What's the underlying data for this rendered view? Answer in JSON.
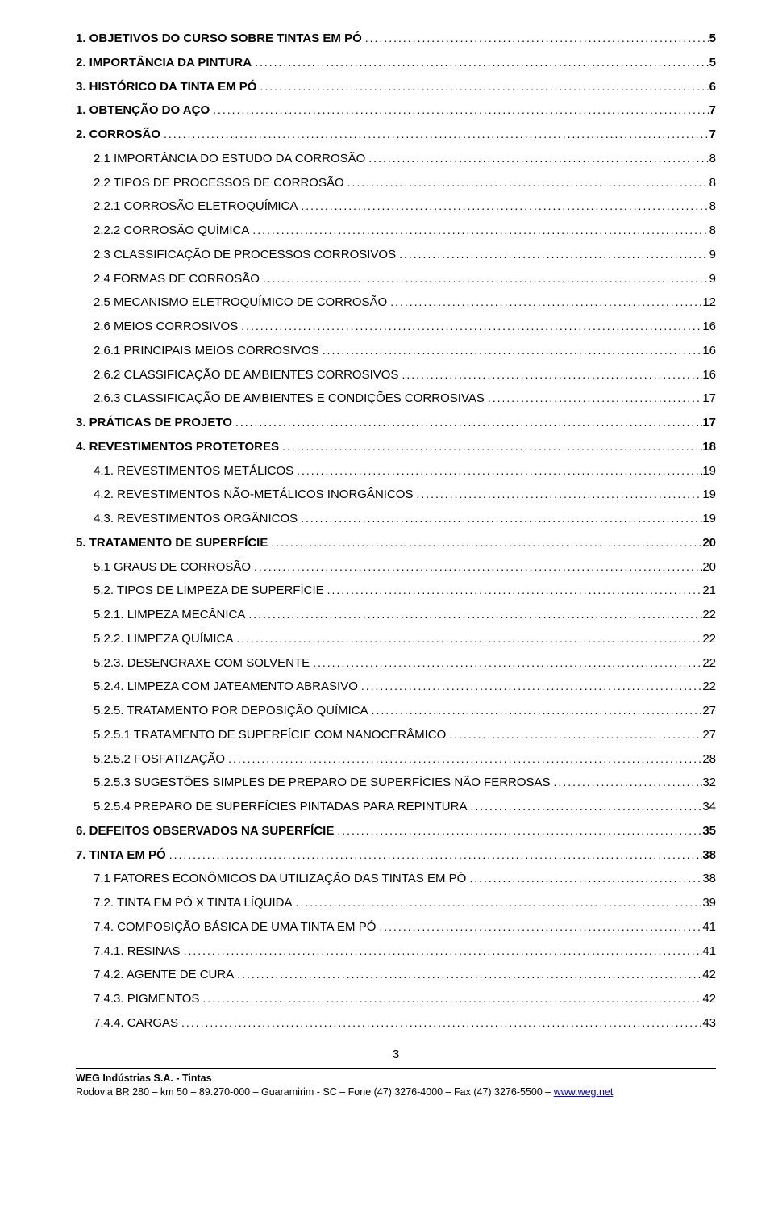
{
  "toc": [
    {
      "label": "1.    OBJETIVOS DO CURSO SOBRE TINTAS EM PÓ",
      "page": "5",
      "bold": true,
      "indent": 0
    },
    {
      "label": "2. IMPORTÂNCIA DA PINTURA",
      "page": "5",
      "bold": true,
      "indent": 0
    },
    {
      "label": "3.  HISTÓRICO DA TINTA EM PÓ",
      "page": "6",
      "bold": true,
      "indent": 0
    },
    {
      "label": "1. OBTENÇÃO DO AÇO",
      "page": "7",
      "bold": true,
      "indent": 0
    },
    {
      "label": "2. CORROSÃO",
      "page": "7",
      "bold": true,
      "indent": 0
    },
    {
      "label": "2.1 IMPORTÂNCIA DO ESTUDO DA CORROSÃO",
      "page": "8",
      "bold": false,
      "indent": 1
    },
    {
      "label": "2.2 TIPOS DE PROCESSOS DE CORROSÃO",
      "page": "8",
      "bold": false,
      "indent": 1
    },
    {
      "label": "2.2.1 CORROSÃO ELETROQUÍMICA",
      "page": "8",
      "bold": false,
      "indent": 1
    },
    {
      "label": "2.2.2 CORROSÃO QUÍMICA",
      "page": "8",
      "bold": false,
      "indent": 1
    },
    {
      "label": "2.3 CLASSIFICAÇÃO DE PROCESSOS CORROSIVOS",
      "page": "9",
      "bold": false,
      "indent": 1
    },
    {
      "label": "2.4 FORMAS DE CORROSÃO",
      "page": "9",
      "bold": false,
      "indent": 1
    },
    {
      "label": "2.5 MECANISMO ELETROQUÍMICO DE CORROSÃO",
      "page": "12",
      "bold": false,
      "indent": 1
    },
    {
      "label": "2.6 MEIOS CORROSIVOS",
      "page": "16",
      "bold": false,
      "indent": 1
    },
    {
      "label": "2.6.1 PRINCIPAIS MEIOS CORROSIVOS",
      "page": "16",
      "bold": false,
      "indent": 1
    },
    {
      "label": "2.6.2 CLASSIFICAÇÃO DE AMBIENTES CORROSIVOS",
      "page": "16",
      "bold": false,
      "indent": 1
    },
    {
      "label": "2.6.3 CLASSIFICAÇÃO DE AMBIENTES E CONDIÇÕES CORROSIVAS",
      "page": "17",
      "bold": false,
      "indent": 1
    },
    {
      "label": "3. PRÁTICAS DE PROJETO",
      "page": "17",
      "bold": true,
      "indent": 0
    },
    {
      "label": "4. REVESTIMENTOS PROTETORES",
      "page": "18",
      "bold": true,
      "indent": 0
    },
    {
      "label": "4.1. REVESTIMENTOS METÁLICOS",
      "page": "19",
      "bold": false,
      "indent": 1
    },
    {
      "label": "4.2. REVESTIMENTOS NÃO-METÁLICOS INORGÂNICOS",
      "page": "19",
      "bold": false,
      "indent": 1
    },
    {
      "label": "4.3. REVESTIMENTOS ORGÂNICOS",
      "page": "19",
      "bold": false,
      "indent": 1
    },
    {
      "label": "5. TRATAMENTO DE SUPERFÍCIE",
      "page": "20",
      "bold": true,
      "indent": 0
    },
    {
      "label": "5.1 GRAUS DE CORROSÃO",
      "page": "20",
      "bold": false,
      "indent": 1
    },
    {
      "label": "5.2. TIPOS DE LIMPEZA DE SUPERFÍCIE",
      "page": "21",
      "bold": false,
      "indent": 1
    },
    {
      "label": "5.2.1. LIMPEZA MECÂNICA",
      "page": "22",
      "bold": false,
      "indent": 1
    },
    {
      "label": "5.2.2. LIMPEZA QUÍMICA",
      "page": "22",
      "bold": false,
      "indent": 1
    },
    {
      "label": "5.2.3. DESENGRAXE COM SOLVENTE",
      "page": "22",
      "bold": false,
      "indent": 1
    },
    {
      "label": "5.2.4. LIMPEZA COM JATEAMENTO ABRASIVO",
      "page": "22",
      "bold": false,
      "indent": 1
    },
    {
      "label": "5.2.5. TRATAMENTO POR DEPOSIÇÃO QUÍMICA",
      "page": "27",
      "bold": false,
      "indent": 1
    },
    {
      "label": "5.2.5.1 TRATAMENTO DE SUPERFÍCIE COM NANOCERÂMICO",
      "page": "27",
      "bold": false,
      "indent": 1
    },
    {
      "label": "5.2.5.2 FOSFATIZAÇÃO",
      "page": "28",
      "bold": false,
      "indent": 1
    },
    {
      "label": "5.2.5.3 SUGESTÕES SIMPLES DE PREPARO DE SUPERFÍCIES NÃO FERROSAS",
      "page": "32",
      "bold": false,
      "indent": 1
    },
    {
      "label": "5.2.5.4 PREPARO DE SUPERFÍCIES PINTADAS PARA REPINTURA",
      "page": "34",
      "bold": false,
      "indent": 1
    },
    {
      "label": "6. DEFEITOS OBSERVADOS NA SUPERFÍCIE",
      "page": "35",
      "bold": true,
      "indent": 0
    },
    {
      "label": "7. TINTA EM PÓ",
      "page": "38",
      "bold": true,
      "indent": 0
    },
    {
      "label": "7.1 FATORES ECONÔMICOS DA UTILIZAÇÃO DAS TINTAS EM PÓ",
      "page": "38",
      "bold": false,
      "indent": 1
    },
    {
      "label": "7.2. TINTA EM PÓ X TINTA LÍQUIDA",
      "page": "39",
      "bold": false,
      "indent": 1
    },
    {
      "label": "7.4. COMPOSIÇÃO BÁSICA DE UMA TINTA EM PÓ",
      "page": "41",
      "bold": false,
      "indent": 1
    },
    {
      "label": "7.4.1. RESINAS",
      "page": "41",
      "bold": false,
      "indent": 1
    },
    {
      "label": "7.4.2. AGENTE DE CURA",
      "page": "42",
      "bold": false,
      "indent": 1
    },
    {
      "label": "7.4.3. PIGMENTOS",
      "page": "42",
      "bold": false,
      "indent": 1
    },
    {
      "label": "7.4.4. CARGAS",
      "page": "43",
      "bold": false,
      "indent": 1
    }
  ],
  "pageNumber": "3",
  "footer": {
    "company": "WEG Indústrias S.A. - Tintas",
    "address": "Rodovia BR 280 – km 50 – 89.270-000 – Guaramirim - SC – Fone (47) 3276-4000 – Fax (47) 3276-5500 – ",
    "url": "www.weg.net"
  }
}
